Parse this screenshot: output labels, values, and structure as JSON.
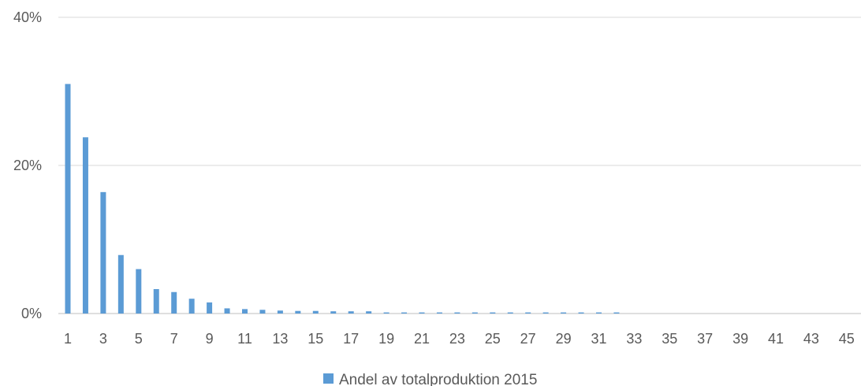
{
  "chart_data": {
    "type": "bar",
    "categories": [
      "1",
      "2",
      "3",
      "4",
      "5",
      "6",
      "7",
      "8",
      "9",
      "10",
      "11",
      "12",
      "13",
      "14",
      "15",
      "16",
      "17",
      "18",
      "19",
      "20",
      "21",
      "22",
      "23",
      "24",
      "25",
      "26",
      "27",
      "28",
      "29",
      "30",
      "31",
      "32",
      "33",
      "34",
      "35",
      "36",
      "37",
      "38",
      "39",
      "40",
      "41",
      "42",
      "43",
      "44",
      "45"
    ],
    "series": [
      {
        "name": "Andel av totalproduktion 2015",
        "values": [
          31.0,
          23.8,
          16.4,
          7.9,
          6.0,
          3.3,
          2.9,
          2.0,
          1.5,
          0.7,
          0.6,
          0.5,
          0.4,
          0.35,
          0.35,
          0.3,
          0.3,
          0.3,
          0.15,
          0.15,
          0.15,
          0.15,
          0.15,
          0.15,
          0.15,
          0.15,
          0.15,
          0.15,
          0.15,
          0.15,
          0.15,
          0.15,
          0,
          0,
          0,
          0,
          0,
          0,
          0,
          0,
          0,
          0,
          0,
          0,
          0
        ]
      }
    ],
    "x_tick_labels": [
      "1",
      "3",
      "5",
      "7",
      "9",
      "11",
      "13",
      "15",
      "17",
      "19",
      "21",
      "23",
      "25",
      "27",
      "29",
      "31",
      "33",
      "35",
      "37",
      "39",
      "41",
      "43",
      "45"
    ],
    "y_ticks": [
      {
        "value": 0,
        "label": "0%"
      },
      {
        "value": 20,
        "label": "20%"
      },
      {
        "value": 40,
        "label": "40%"
      }
    ],
    "ylim": [
      0,
      40
    ],
    "grid": true,
    "legend": "bottom",
    "colors": {
      "bar": "#5B9BD5",
      "grid": "#D9D9D9",
      "text": "#595959"
    }
  }
}
